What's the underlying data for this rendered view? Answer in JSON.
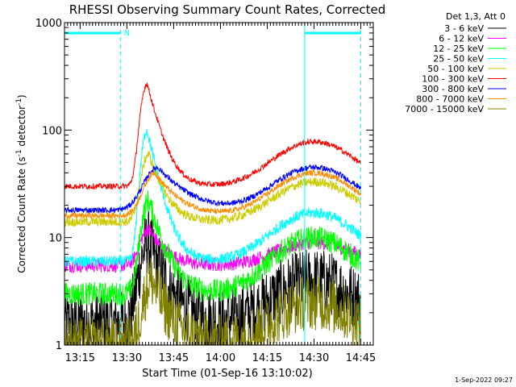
{
  "chart_data": {
    "type": "line",
    "title": "RHESSI Observing Summary Count Rates, Corrected",
    "xlabel": "Start Time (01-Sep-16 13:10:02)",
    "ylabel_main": "Corrected Count Rate (s",
    "ylabel_sup1": "-1",
    "ylabel_mid": " detector",
    "ylabel_sup2": "-1",
    "ylabel_end": ")",
    "yscale": "log",
    "ylim": [
      1,
      1000
    ],
    "xlim_minutes": [
      0,
      99
    ],
    "x_ticks": [
      {
        "m": 5,
        "label": "13:15"
      },
      {
        "m": 20,
        "label": "13:30"
      },
      {
        "m": 35,
        "label": "13:45"
      },
      {
        "m": 50,
        "label": "14:00"
      },
      {
        "m": 65,
        "label": "14:15"
      },
      {
        "m": 80,
        "label": "14:30"
      },
      {
        "m": 95,
        "label": "14:45"
      }
    ],
    "y_ticks": [
      {
        "v": 1,
        "label": "1"
      },
      {
        "v": 10,
        "label": "10"
      },
      {
        "v": 100,
        "label": "100"
      },
      {
        "v": 1000,
        "label": "1000"
      }
    ],
    "legend_header": "Det 1,3, Att 0",
    "annotation_night": "N",
    "night_bars_minutes": [
      [
        0,
        18
      ],
      [
        77,
        95
      ]
    ],
    "date_stamp": "1-Sep-2022 09:27",
    "series": [
      {
        "name": "3 - 6 keV",
        "color": "#000000",
        "base": 1.6,
        "flare_peak": 9,
        "flare_t": 27,
        "flare_w": 3,
        "bump_peak": 4,
        "noise": 0.7
      },
      {
        "name": "6 - 12 keV",
        "color": "#ff00ff",
        "base": 5.5,
        "flare_peak": 12,
        "flare_t": 27,
        "flare_w": 3,
        "bump_peak": 9,
        "noise": 0.15
      },
      {
        "name": "12 - 25 keV",
        "color": "#00ff00",
        "base": 3.0,
        "flare_peak": 22,
        "flare_t": 27,
        "flare_w": 2.5,
        "bump_peak": 10,
        "noise": 0.25
      },
      {
        "name": "25 - 50 keV",
        "color": "#00ffff",
        "base": 6.0,
        "flare_peak": 100,
        "flare_t": 26.5,
        "flare_w": 2,
        "bump_peak": 17,
        "noise": 0.12
      },
      {
        "name": "50 - 100 keV",
        "color": "#cccc00",
        "base": 14,
        "flare_peak": 60,
        "flare_t": 27,
        "flare_w": 2.5,
        "bump_peak": 33,
        "noise": 0.1
      },
      {
        "name": "100 - 300 keV",
        "color": "#ff0000",
        "base": 30,
        "flare_peak": 270,
        "flare_t": 26.5,
        "flare_w": 2.2,
        "bump_peak": 78,
        "noise": 0.06
      },
      {
        "name": "300 - 800 keV",
        "color": "#0000ff",
        "base": 18,
        "flare_peak": 45,
        "flare_t": 30,
        "flare_w": 5,
        "bump_peak": 45,
        "noise": 0.06
      },
      {
        "name": "800 - 7000 keV",
        "color": "#ff8c00",
        "base": 16,
        "flare_peak": 40,
        "flare_t": 29,
        "flare_w": 4,
        "bump_peak": 40,
        "noise": 0.06
      },
      {
        "name": "7000 - 15000 keV",
        "color": "#808000",
        "base": 1.0,
        "flare_peak": 4,
        "flare_t": 28,
        "flare_w": 3,
        "bump_peak": 2.5,
        "noise": 0.6
      }
    ]
  }
}
